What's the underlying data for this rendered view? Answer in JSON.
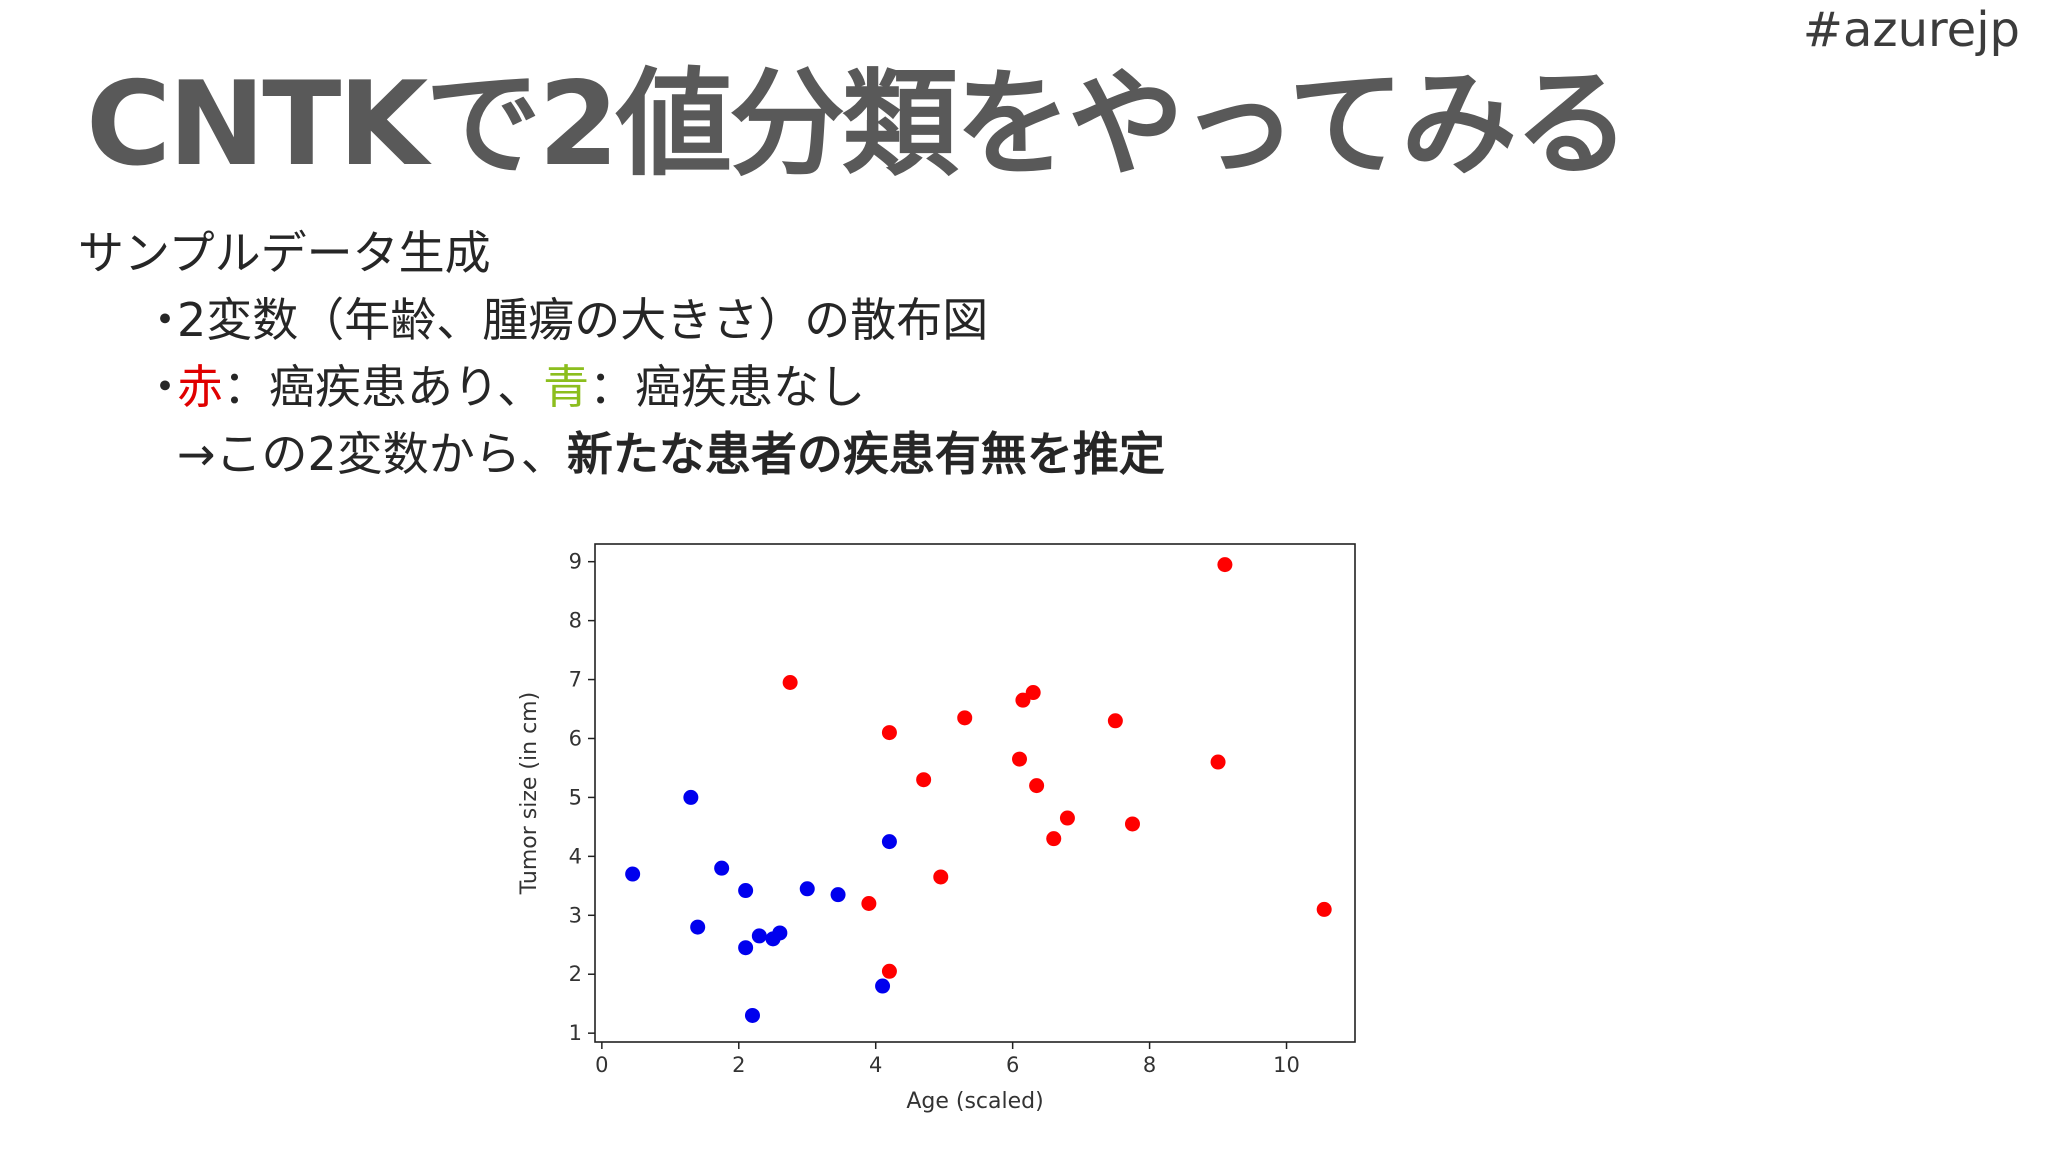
{
  "hashtag": "#azurejp",
  "title": "CNTKで2値分類をやってみる",
  "content": {
    "heading": "サンプルデータ生成",
    "bullet_marker": "・",
    "bullet1": "2変数（年齢、腫瘍の大きさ）の散布図",
    "bullet2": {
      "red_word": "赤",
      "red_desc": "：癌疾患あり、",
      "green_word": "青",
      "green_desc": "：癌疾患なし"
    },
    "conclusion": {
      "normal": "→この2変数から、",
      "bold": "新たな患者の疾患有無を推定"
    }
  },
  "colors": {
    "red_text": "#e00000",
    "green_text": "#8cbe1e",
    "point_red": "#ff0000",
    "point_blue": "#0000ee"
  },
  "chart_data": {
    "type": "scatter",
    "xlabel": "Age (scaled)",
    "ylabel": "Tumor size (in cm)",
    "xlim": [
      -0.1,
      11.0
    ],
    "ylim": [
      0.85,
      9.3
    ],
    "xticks": [
      0,
      2,
      4,
      6,
      8,
      10
    ],
    "yticks": [
      1,
      2,
      3,
      4,
      5,
      6,
      7,
      8,
      9
    ],
    "grid": false,
    "series": [
      {
        "color": "#ff0000",
        "points": [
          [
            9.1,
            8.95
          ],
          [
            2.75,
            6.95
          ],
          [
            4.2,
            6.1
          ],
          [
            5.3,
            6.35
          ],
          [
            6.15,
            6.65
          ],
          [
            6.3,
            6.78
          ],
          [
            7.5,
            6.3
          ],
          [
            4.7,
            5.3
          ],
          [
            6.1,
            5.65
          ],
          [
            6.35,
            5.2
          ],
          [
            9.0,
            5.6
          ],
          [
            6.8,
            4.65
          ],
          [
            7.75,
            4.55
          ],
          [
            6.6,
            4.3
          ],
          [
            3.9,
            3.2
          ],
          [
            4.95,
            3.65
          ],
          [
            10.55,
            3.1
          ],
          [
            4.2,
            2.05
          ]
        ]
      },
      {
        "color": "#0000ee",
        "points": [
          [
            1.3,
            5.0
          ],
          [
            0.45,
            3.7
          ],
          [
            1.75,
            3.8
          ],
          [
            2.1,
            3.42
          ],
          [
            3.0,
            3.45
          ],
          [
            3.45,
            3.35
          ],
          [
            4.2,
            4.25
          ],
          [
            1.4,
            2.8
          ],
          [
            2.3,
            2.65
          ],
          [
            2.5,
            2.6
          ],
          [
            2.6,
            2.7
          ],
          [
            2.1,
            2.45
          ],
          [
            4.1,
            1.8
          ],
          [
            2.2,
            1.3
          ]
        ]
      }
    ]
  }
}
